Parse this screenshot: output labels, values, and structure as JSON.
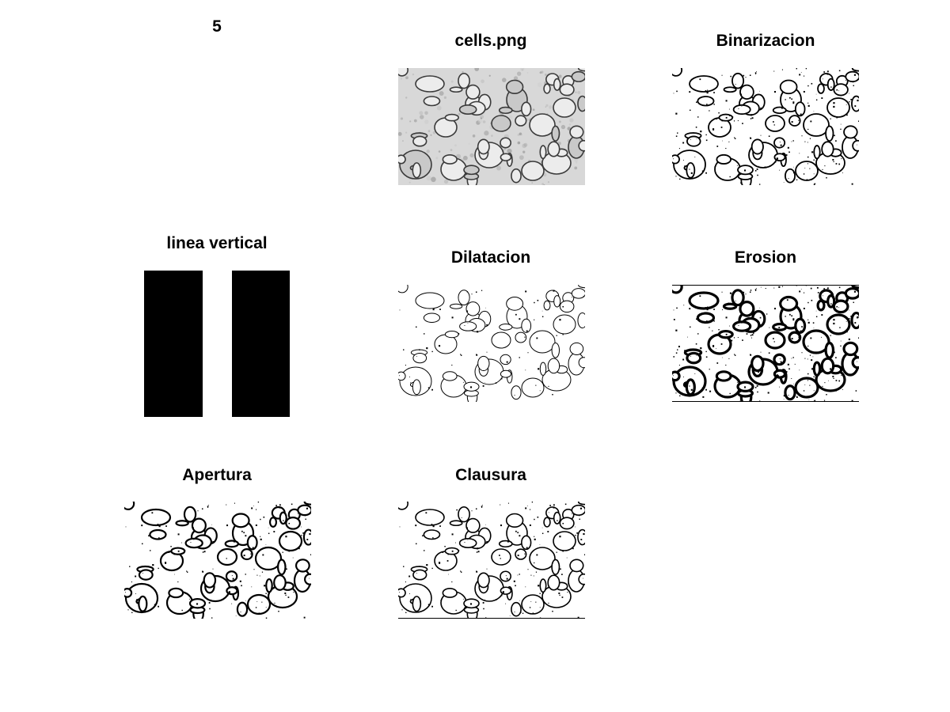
{
  "figure": {
    "panel_1": {
      "title": "5"
    },
    "panel_2": {
      "title": "cells.png",
      "style": "grayscale"
    },
    "panel_3": {
      "title": "Binarizacion",
      "style": "binary"
    },
    "panel_4": {
      "title": "linea vertical"
    },
    "panel_5": {
      "title": "Dilatacion",
      "style": "dilated"
    },
    "panel_6": {
      "title": "Erosion",
      "style": "eroded"
    },
    "panel_7": {
      "title": "Apertura",
      "style": "opened"
    },
    "panel_8": {
      "title": "Clausura",
      "style": "closed"
    },
    "panel_9": {
      "title": ""
    }
  },
  "colors": {
    "background": "#ffffff",
    "foreground": "#000000",
    "gray_bg": "#d8d8d8",
    "gray_edge": "#3a3a3a"
  }
}
